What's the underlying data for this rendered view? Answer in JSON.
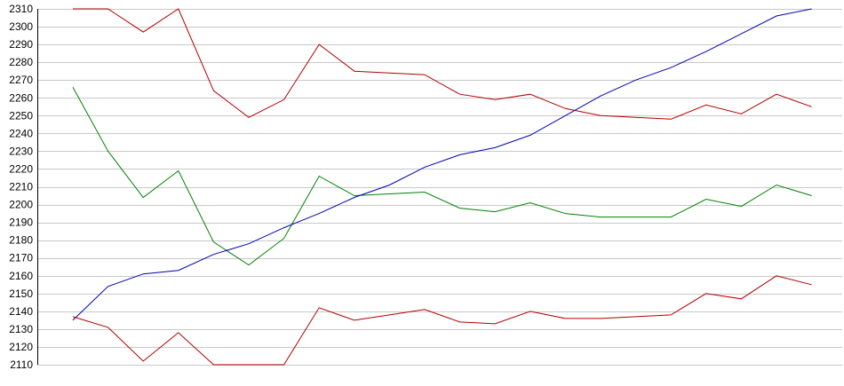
{
  "chart_data": {
    "type": "line",
    "title": "",
    "xlabel": "",
    "ylabel": "",
    "ylim": [
      2110,
      2310
    ],
    "yticks": [
      2110,
      2120,
      2130,
      2140,
      2150,
      2160,
      2170,
      2180,
      2190,
      2200,
      2210,
      2220,
      2230,
      2240,
      2250,
      2260,
      2270,
      2280,
      2290,
      2300,
      2310
    ],
    "x": [
      1,
      2,
      3,
      4,
      5,
      6,
      7,
      8,
      9,
      10,
      11,
      12,
      13,
      14,
      15,
      16,
      17,
      18,
      19,
      20,
      21,
      22
    ],
    "grid": true,
    "legend": "none",
    "series": [
      {
        "color": "#b00000",
        "values": [
          2310,
          2310,
          2297,
          2310,
          2264,
          2249,
          2259,
          2290,
          2275,
          2274,
          2273,
          2262,
          2259,
          2262,
          2254,
          2250,
          2249,
          2248,
          2256,
          2251,
          2262,
          2255
        ]
      },
      {
        "color": "#008000",
        "values": [
          2266,
          2230,
          2204,
          2219,
          2179,
          2166,
          2181,
          2216,
          2205,
          2206,
          2207,
          2198,
          2196,
          2201,
          2195,
          2193,
          2193,
          2193,
          2203,
          2199,
          2211,
          2205
        ]
      },
      {
        "color": "#0000b0",
        "values": [
          2135,
          2154,
          2161,
          2163,
          2172,
          2178,
          2187,
          2195,
          2204,
          2211,
          2221,
          2228,
          2232,
          2239,
          2250,
          2261,
          2270,
          2277,
          2286,
          2296,
          2306,
          2310
        ]
      },
      {
        "color": "#b00000",
        "values": [
          2137,
          2131,
          2112,
          2128,
          2110,
          2110,
          2110,
          2142,
          2135,
          2138,
          2141,
          2134,
          2133,
          2140,
          2136,
          2136,
          2137,
          2138,
          2150,
          2147,
          2160,
          2155
        ]
      }
    ]
  }
}
